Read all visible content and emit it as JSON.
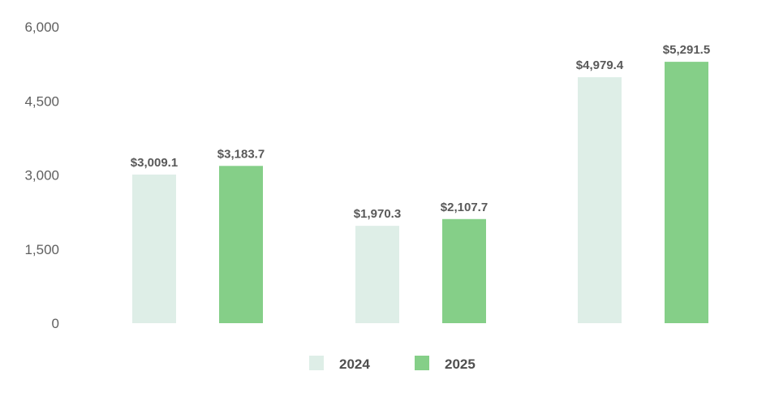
{
  "chart_data": {
    "type": "bar",
    "categories": [
      "",
      "",
      ""
    ],
    "series": [
      {
        "name": "2024",
        "color": "#deeee7",
        "values": [
          3009.1,
          1970.3,
          4979.4
        ],
        "labels": [
          "$3,009.1",
          "$1,970.3",
          "$4,979.4"
        ]
      },
      {
        "name": "2025",
        "color": "#85cf88",
        "values": [
          3183.7,
          2107.7,
          5291.5
        ],
        "labels": [
          "$3,183.7",
          "$2,107.7",
          "$5,291.5"
        ]
      }
    ],
    "y_ticks": [
      "0",
      "1,500",
      "3,000",
      "4,500",
      "6,000"
    ],
    "ylim": [
      0,
      6000
    ],
    "title": "",
    "xlabel": "",
    "ylabel": "",
    "grid": false,
    "legend_position": "bottom-center"
  }
}
